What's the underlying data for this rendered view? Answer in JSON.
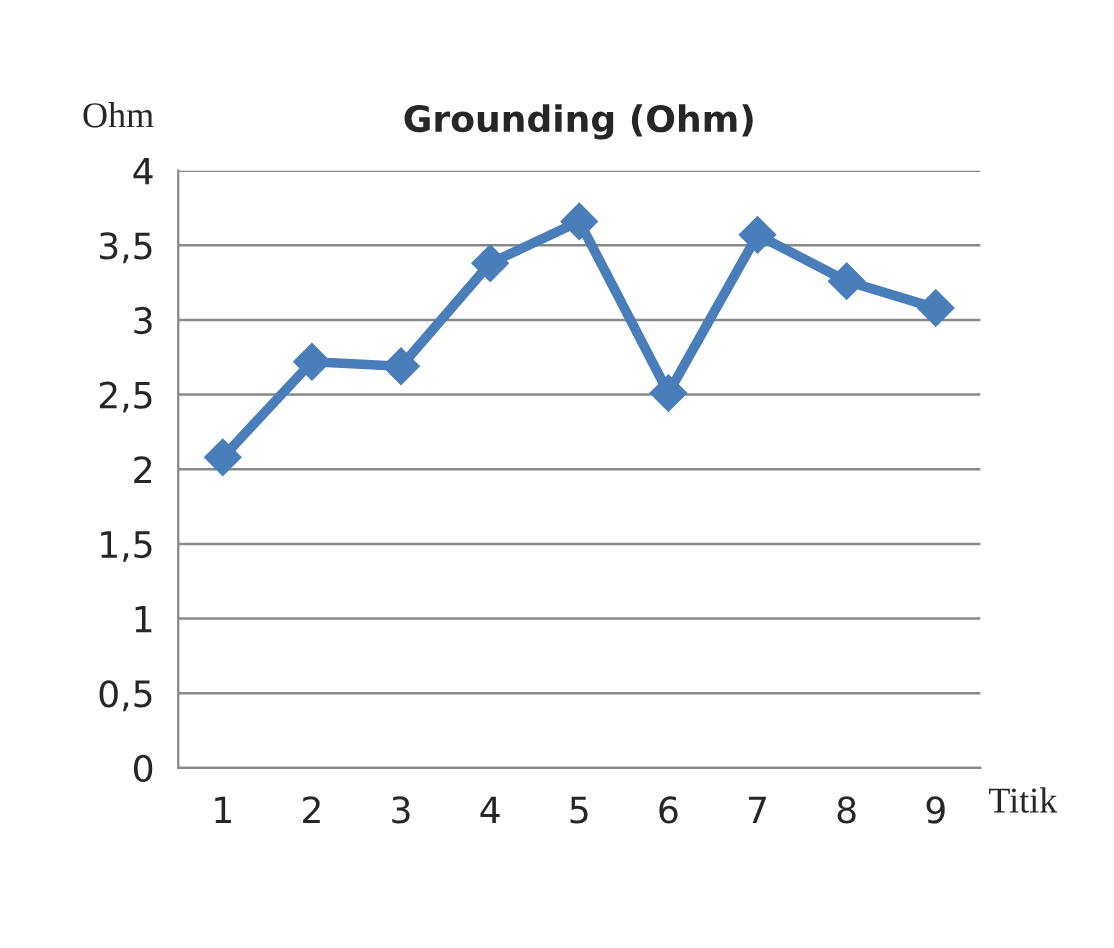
{
  "chart_data": {
    "type": "line",
    "title": "Grounding (Ohm)",
    "ylabel": "Ohm",
    "xlabel": "Titik",
    "categories": [
      "1",
      "2",
      "3",
      "4",
      "5",
      "6",
      "7",
      "8",
      "9"
    ],
    "series": [
      {
        "color": "#4a7ebb",
        "values": [
          2.08,
          2.72,
          2.69,
          3.38,
          3.66,
          2.51,
          3.57,
          3.26,
          3.08
        ]
      }
    ],
    "ylim": [
      0,
      4
    ],
    "yticks": [
      0,
      {
        "value": 0.5,
        "label": "0,5"
      },
      1,
      {
        "value": 1.5,
        "label": "1,5"
      },
      2,
      {
        "value": 2.5,
        "label": "2,5"
      },
      3,
      {
        "value": 3.5,
        "label": "3,5"
      },
      4
    ],
    "grid": "y",
    "marker": "diamond",
    "line_style": "solid",
    "legend": false
  }
}
